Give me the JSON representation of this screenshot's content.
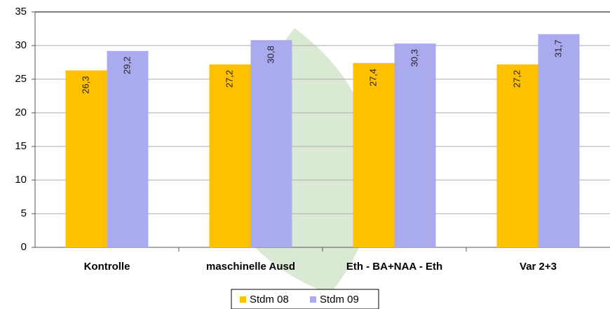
{
  "chart_data": {
    "type": "bar",
    "categories": [
      "Kontrolle",
      "maschinelle Ausd",
      "Eth - BA+NAA - Eth",
      "Var 2+3"
    ],
    "series": [
      {
        "name": "Stdm 08",
        "color": "#ffc000",
        "values": [
          26.3,
          27.2,
          27.4,
          27.2
        ],
        "value_labels": [
          "26,3",
          "27,2",
          "27,4",
          "27,2"
        ]
      },
      {
        "name": "Stdm 09",
        "color": "#aaaaee",
        "values": [
          29.2,
          30.8,
          30.3,
          31.7
        ],
        "value_labels": [
          "29,2",
          "30,8",
          "30,3",
          "31,7"
        ]
      }
    ],
    "ylim": [
      0,
      35
    ],
    "yticks": [
      0,
      5,
      10,
      15,
      20,
      25,
      30,
      35
    ],
    "grid": true,
    "legend": "bottom"
  }
}
